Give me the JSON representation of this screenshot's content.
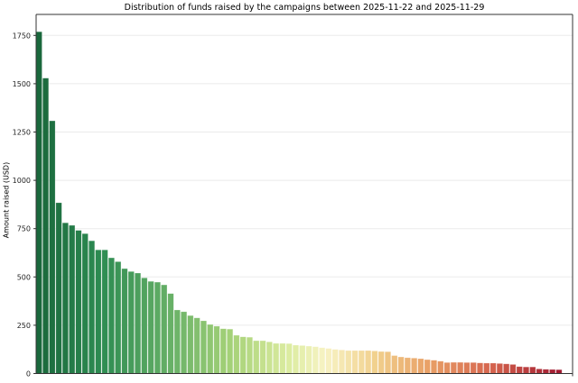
{
  "chart_data": {
    "type": "bar",
    "title": "Distribution of funds raised by the campaigns between 2025-11-22 and 2025-11-29",
    "xlabel": "",
    "ylabel": "Amount raised (USD)",
    "ylim": [
      0,
      1860
    ],
    "yticks": [
      0,
      250,
      500,
      750,
      1000,
      1250,
      1500,
      1750
    ],
    "grid": "horizontal",
    "legend": "none",
    "colormap": "green-to-red (RdYlGn reversed by rank)",
    "values": [
      1769,
      1529,
      1308,
      884,
      780,
      767,
      741,
      724,
      687,
      640,
      640,
      599,
      579,
      543,
      528,
      520,
      495,
      477,
      473,
      459,
      414,
      329,
      320,
      300,
      288,
      273,
      254,
      245,
      232,
      230,
      198,
      190,
      188,
      170,
      170,
      164,
      156,
      156,
      155,
      147,
      145,
      142,
      139,
      134,
      130,
      125,
      122,
      119,
      119,
      119,
      119,
      117,
      114,
      113,
      93,
      86,
      82,
      80,
      77,
      72,
      69,
      64,
      57,
      58,
      58,
      57,
      57,
      55,
      54,
      54,
      52,
      50,
      47,
      36,
      34,
      34,
      24,
      22,
      21,
      20
    ]
  }
}
